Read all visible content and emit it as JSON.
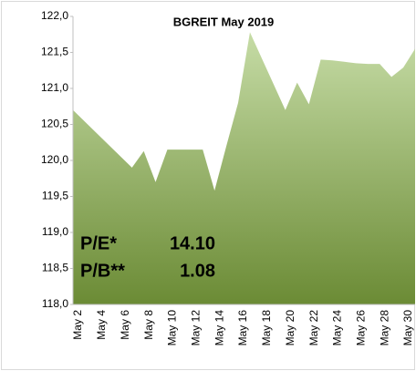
{
  "chart_data": {
    "type": "area",
    "title": "BGREIT May 2019",
    "categories": [
      "May 2",
      null,
      "May 4",
      null,
      "May 6",
      null,
      "May 8",
      null,
      "May 10",
      null,
      "May 12",
      null,
      "May 14",
      null,
      "May 16",
      null,
      "May 18",
      null,
      "May 20",
      null,
      "May 22",
      null,
      "May 24",
      null,
      "May 26",
      null,
      "May 28",
      null,
      "May 30",
      null
    ],
    "values": [
      120.7,
      120.54,
      120.38,
      120.22,
      120.06,
      119.9,
      120.13,
      119.7,
      120.15,
      120.15,
      120.15,
      120.15,
      119.58,
      120.2,
      120.8,
      121.78,
      121.42,
      121.06,
      120.7,
      121.08,
      120.78,
      121.4,
      121.39,
      121.37,
      121.35,
      121.34,
      121.34,
      121.16,
      121.29,
      121.55
    ],
    "color_top": "#c6dca6",
    "color_bottom": "#6b8b35",
    "ylim": [
      118,
      122
    ],
    "yticks": [
      {
        "value": 118,
        "label": "118,0"
      },
      {
        "value": 118.5,
        "label": "118,5"
      },
      {
        "value": 119,
        "label": "119,0"
      },
      {
        "value": 119.5,
        "label": "119,5"
      },
      {
        "value": 120,
        "label": "120,0"
      },
      {
        "value": 120.5,
        "label": "120,5"
      },
      {
        "value": 121,
        "label": "121,0"
      },
      {
        "value": 121.5,
        "label": "121,5"
      },
      {
        "value": 122,
        "label": "122,0"
      }
    ],
    "annotations": [
      {
        "label": "P/E*",
        "value": "14.10"
      },
      {
        "label": "P/B**",
        "value": "1.08"
      }
    ]
  }
}
